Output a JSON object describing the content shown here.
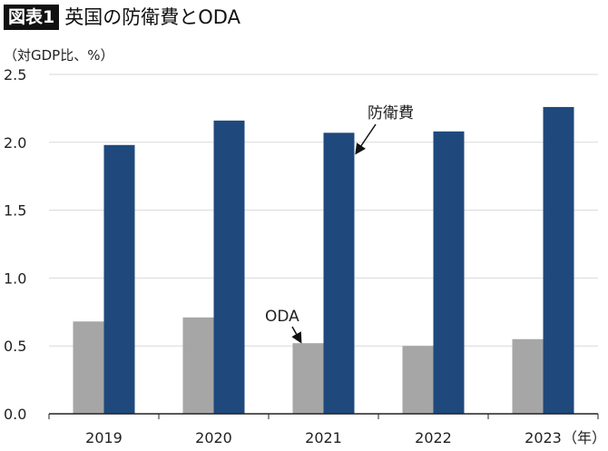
{
  "header": {
    "figure_label": "図表1",
    "title": "英国の防衛費とODA"
  },
  "chart_data": {
    "type": "bar",
    "title": "英国の防衛費とODA",
    "ylabel": "（対GDP比、%）",
    "xlabel": "（年）",
    "categories": [
      "2019",
      "2020",
      "2021",
      "2022",
      "2023"
    ],
    "series": [
      {
        "name": "ODA",
        "color": "#a6a6a6",
        "values": [
          0.68,
          0.71,
          0.52,
          0.5,
          0.55
        ]
      },
      {
        "name": "防衛費",
        "color": "#1f497d",
        "values": [
          1.98,
          2.16,
          2.07,
          2.08,
          2.26
        ]
      }
    ],
    "ylim": [
      0,
      2.5
    ],
    "yticks": [
      "0.0",
      "0.5",
      "1.0",
      "1.5",
      "2.0",
      "2.5"
    ],
    "grid": true,
    "legend": "annotations with arrows"
  }
}
